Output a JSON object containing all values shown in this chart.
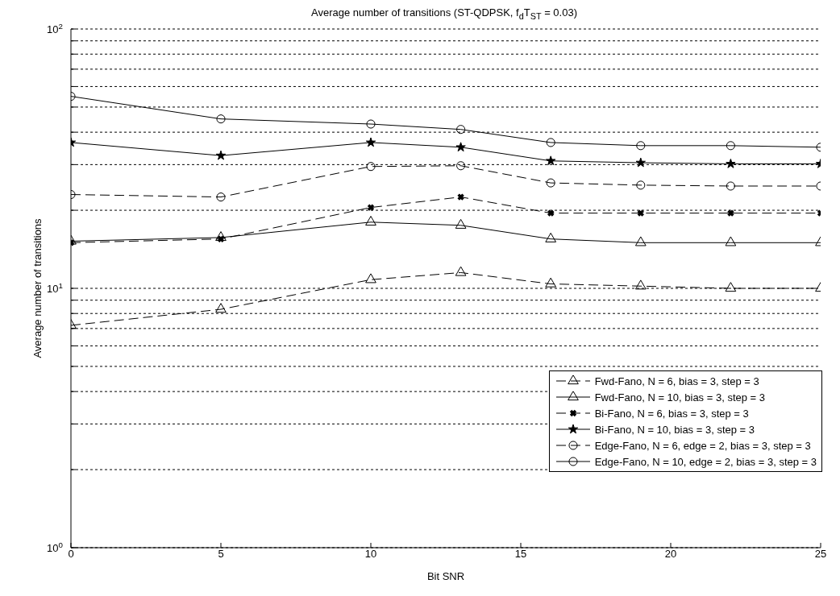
{
  "chart_data": {
    "type": "line",
    "title": "Average number of transitions (ST-QDPSK, f$_{d}$T$_{ST}$ = 0.03)",
    "xlabel": "Bit SNR",
    "ylabel": "Average number of transitions",
    "x": [
      0,
      5,
      10,
      13,
      16,
      19,
      22,
      25
    ],
    "series": [
      {
        "name": "Fwd-Fano, N = 6, bias = 3, step = 3",
        "color": "#000000",
        "marker": "triangle",
        "line_style": "dashed",
        "values": [
          7.2,
          8.3,
          10.8,
          11.5,
          10.4,
          10.2,
          10,
          10
        ]
      },
      {
        "name": "Fwd-Fano, N = 10, bias = 3, step = 3",
        "color": "#000000",
        "marker": "triangle",
        "line_style": "solid",
        "values": [
          15.2,
          15.7,
          18,
          17.5,
          15.5,
          15,
          15,
          15
        ]
      },
      {
        "name": "Bi-Fano, N = 6, bias = 3, step = 3",
        "color": "#000000",
        "marker": "cross",
        "line_style": "dashed",
        "values": [
          15,
          15.5,
          20.5,
          22.5,
          19.5,
          19.5,
          19.5,
          19.5
        ]
      },
      {
        "name": "Bi-Fano, N = 10, bias = 3, step = 3",
        "color": "#000000",
        "marker": "star",
        "line_style": "solid",
        "values": [
          36.5,
          32.5,
          36.5,
          35,
          31,
          30.5,
          30.2,
          30.2
        ]
      },
      {
        "name": "Edge-Fano, N = 6, edge = 2, bias = 3, step = 3",
        "color": "#000000",
        "marker": "circle",
        "line_style": "dashed",
        "values": [
          23,
          22.5,
          29.5,
          29.7,
          25.5,
          25,
          24.8,
          24.8
        ]
      },
      {
        "name": "Edge-Fano, N = 10, edge = 2, bias = 3, step = 3",
        "color": "#000000",
        "marker": "circle",
        "line_style": "solid",
        "values": [
          55,
          45,
          43,
          41,
          36.5,
          35.5,
          35.5,
          35
        ]
      }
    ],
    "xlim": [
      0,
      25
    ],
    "xticks": [
      0,
      5,
      10,
      15,
      20,
      25
    ],
    "ylim": [
      1,
      100
    ],
    "log": true,
    "yticks": [
      {
        "value": 1,
        "label": "10$^{0}$"
      },
      {
        "value": 2,
        "label": null
      },
      {
        "value": 3,
        "label": null
      },
      {
        "value": 4,
        "label": null
      },
      {
        "value": 5,
        "label": null
      },
      {
        "value": 6,
        "label": null
      },
      {
        "value": 7,
        "label": null
      },
      {
        "value": 8,
        "label": null
      },
      {
        "value": 9,
        "label": null
      },
      {
        "value": 10,
        "label": "10$^{1}$"
      },
      {
        "value": 20,
        "label": null
      },
      {
        "value": 30,
        "label": null
      },
      {
        "value": 40,
        "label": null
      },
      {
        "value": 50,
        "label": null
      },
      {
        "value": 60,
        "label": null
      },
      {
        "value": 70,
        "label": null
      },
      {
        "value": 80,
        "label": null
      },
      {
        "value": 90,
        "label": null
      },
      {
        "value": 100,
        "label": "10$^{2}$"
      }
    ],
    "grid": "y",
    "legend": "bottom right"
  }
}
